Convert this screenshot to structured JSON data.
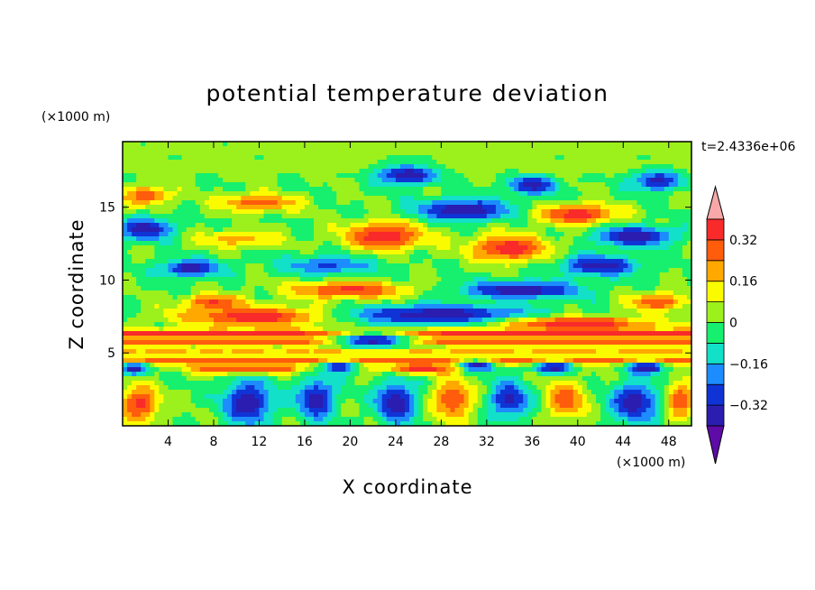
{
  "chart_data": {
    "type": "heatmap",
    "title": "potential temperature deviation",
    "xlabel": "X coordinate",
    "ylabel": "Z coordinate",
    "x_unit_label": "(×1000 m)",
    "y_unit_label": "(×1000 m)",
    "time_label": "t=2.4336e+06",
    "xlim": [
      0,
      50
    ],
    "ylim": [
      0,
      19.5
    ],
    "x_ticks": [
      4,
      8,
      12,
      16,
      20,
      24,
      28,
      32,
      36,
      40,
      44,
      48
    ],
    "x_tick_labels": [
      "4",
      "8",
      "12",
      "16",
      "20",
      "24",
      "28",
      "32",
      "36",
      "40",
      "44",
      "48"
    ],
    "y_ticks": [
      5,
      10,
      15
    ],
    "y_tick_labels": [
      "5",
      "10",
      "15"
    ],
    "colorbar": {
      "levels": [
        -0.4,
        -0.32,
        -0.24,
        -0.16,
        -0.08,
        0,
        0.08,
        0.16,
        0.24,
        0.32,
        0.4
      ],
      "tick_values": [
        -0.32,
        -0.16,
        0,
        0.16,
        0.32
      ],
      "tick_labels": [
        "−0.32",
        "−0.16",
        "0",
        "0.16",
        "0.32"
      ],
      "colors": [
        "#5e0ba8",
        "#2a1db0",
        "#1033d6",
        "#1c8cff",
        "#12e0c8",
        "#16f06e",
        "#9cf01c",
        "#fbfb00",
        "#ffa800",
        "#ff5c0c",
        "#f82a2a",
        "#f8a8a8"
      ],
      "extend": "both"
    },
    "features": [
      {
        "type": "band",
        "z": 19,
        "h": 1.0,
        "value": 0.02
      },
      {
        "type": "band",
        "z": 17.8,
        "h": 0.9,
        "value": 0.03
      },
      {
        "type": "blob",
        "x": 25,
        "z": 17.2,
        "rx": 3,
        "rz": 0.8,
        "value": -0.4
      },
      {
        "type": "blob",
        "x": 36,
        "z": 16.5,
        "rx": 2.5,
        "rz": 0.7,
        "value": -0.38
      },
      {
        "type": "blob",
        "x": 47,
        "z": 16.8,
        "rx": 2.5,
        "rz": 0.8,
        "value": -0.35
      },
      {
        "type": "blob",
        "x": 2,
        "z": 15.8,
        "rx": 2.5,
        "rz": 0.8,
        "value": 0.3
      },
      {
        "type": "blob",
        "x": 12,
        "z": 15.3,
        "rx": 4,
        "rz": 0.7,
        "value": 0.3
      },
      {
        "type": "blob",
        "x": 30,
        "z": 14.8,
        "rx": 5,
        "rz": 0.9,
        "value": -0.4
      },
      {
        "type": "blob",
        "x": 40,
        "z": 14.5,
        "rx": 4,
        "rz": 0.8,
        "value": 0.38
      },
      {
        "type": "blob",
        "x": 2,
        "z": 13.5,
        "rx": 3,
        "rz": 0.9,
        "value": -0.38
      },
      {
        "type": "blob",
        "x": 10,
        "z": 12.8,
        "rx": 4,
        "rz": 0.7,
        "value": 0.2
      },
      {
        "type": "blob",
        "x": 23,
        "z": 13,
        "rx": 4,
        "rz": 1.1,
        "value": 0.4
      },
      {
        "type": "blob",
        "x": 34,
        "z": 12.2,
        "rx": 4,
        "rz": 1.1,
        "value": 0.38
      },
      {
        "type": "blob",
        "x": 45,
        "z": 13,
        "rx": 4,
        "rz": 0.8,
        "value": -0.4
      },
      {
        "type": "blob",
        "x": 6,
        "z": 10.8,
        "rx": 3,
        "rz": 0.7,
        "value": -0.38
      },
      {
        "type": "blob",
        "x": 18,
        "z": 11,
        "rx": 5,
        "rz": 0.8,
        "value": -0.25
      },
      {
        "type": "blob",
        "x": 42,
        "z": 11,
        "rx": 4,
        "rz": 0.8,
        "value": -0.38
      },
      {
        "type": "blob",
        "x": 20,
        "z": 9.3,
        "rx": 6,
        "rz": 0.7,
        "value": 0.35
      },
      {
        "type": "blob",
        "x": 35,
        "z": 9.3,
        "rx": 6,
        "rz": 0.7,
        "value": -0.4
      },
      {
        "type": "blob",
        "x": 8,
        "z": 8.5,
        "rx": 3,
        "rz": 0.6,
        "value": 0.32
      },
      {
        "type": "blob",
        "x": 47,
        "z": 8.5,
        "rx": 3,
        "rz": 0.7,
        "value": 0.32
      },
      {
        "type": "blob",
        "x": 12,
        "z": 7.5,
        "rx": 8,
        "rz": 0.8,
        "value": 0.4
      },
      {
        "type": "blob",
        "x": 28,
        "z": 7.6,
        "rx": 10,
        "rz": 0.8,
        "value": -0.4
      },
      {
        "type": "blob",
        "x": 40,
        "z": 7.0,
        "rx": 8,
        "rz": 0.6,
        "value": 0.4
      },
      {
        "type": "band",
        "z": 6.3,
        "h": 0.5,
        "value": 0.34
      },
      {
        "type": "band",
        "z": 5.7,
        "h": 0.4,
        "value": 0.28
      },
      {
        "type": "blob",
        "x": 22,
        "z": 5.8,
        "rx": 4,
        "rz": 0.8,
        "value": -0.35
      },
      {
        "type": "band",
        "z": 5.0,
        "h": 0.5,
        "value": 0.18
      },
      {
        "type": "band",
        "z": 4.4,
        "h": 0.3,
        "value": 0.36
      },
      {
        "type": "blob",
        "x": 1,
        "z": 3.9,
        "rx": 1.5,
        "rz": 0.5,
        "value": -0.4
      },
      {
        "type": "blob",
        "x": 19,
        "z": 4.0,
        "rx": 2,
        "rz": 0.5,
        "value": -0.4
      },
      {
        "type": "blob",
        "x": 31,
        "z": 4.1,
        "rx": 2,
        "rz": 0.5,
        "value": -0.4
      },
      {
        "type": "blob",
        "x": 38,
        "z": 4.0,
        "rx": 2,
        "rz": 0.5,
        "value": -0.4
      },
      {
        "type": "blob",
        "x": 46,
        "z": 4.0,
        "rx": 2,
        "rz": 0.5,
        "value": -0.4
      },
      {
        "type": "blob",
        "x": 11,
        "z": 3.9,
        "rx": 6,
        "rz": 0.4,
        "value": 0.4
      },
      {
        "type": "blob",
        "x": 26,
        "z": 3.9,
        "rx": 4,
        "rz": 0.4,
        "value": 0.4
      },
      {
        "type": "blob",
        "x": 1.5,
        "z": 1.5,
        "rx": 2,
        "rz": 1.5,
        "value": 0.35
      },
      {
        "type": "blob",
        "x": 11,
        "z": 1.6,
        "rx": 2.5,
        "rz": 1.8,
        "value": -0.4
      },
      {
        "type": "blob",
        "x": 17,
        "z": 1.8,
        "rx": 2,
        "rz": 1.6,
        "value": -0.38
      },
      {
        "type": "blob",
        "x": 24,
        "z": 1.6,
        "rx": 2,
        "rz": 1.7,
        "value": -0.4
      },
      {
        "type": "blob",
        "x": 29,
        "z": 1.8,
        "rx": 2,
        "rz": 1.7,
        "value": 0.32
      },
      {
        "type": "blob",
        "x": 34,
        "z": 1.8,
        "rx": 2,
        "rz": 1.5,
        "value": -0.35
      },
      {
        "type": "blob",
        "x": 39,
        "z": 1.8,
        "rx": 2,
        "rz": 1.5,
        "value": 0.3
      },
      {
        "type": "blob",
        "x": 45,
        "z": 1.6,
        "rx": 2.5,
        "rz": 1.6,
        "value": -0.38
      },
      {
        "type": "blob",
        "x": 49,
        "z": 1.8,
        "rx": 1.5,
        "rz": 1.5,
        "value": 0.3
      }
    ]
  }
}
